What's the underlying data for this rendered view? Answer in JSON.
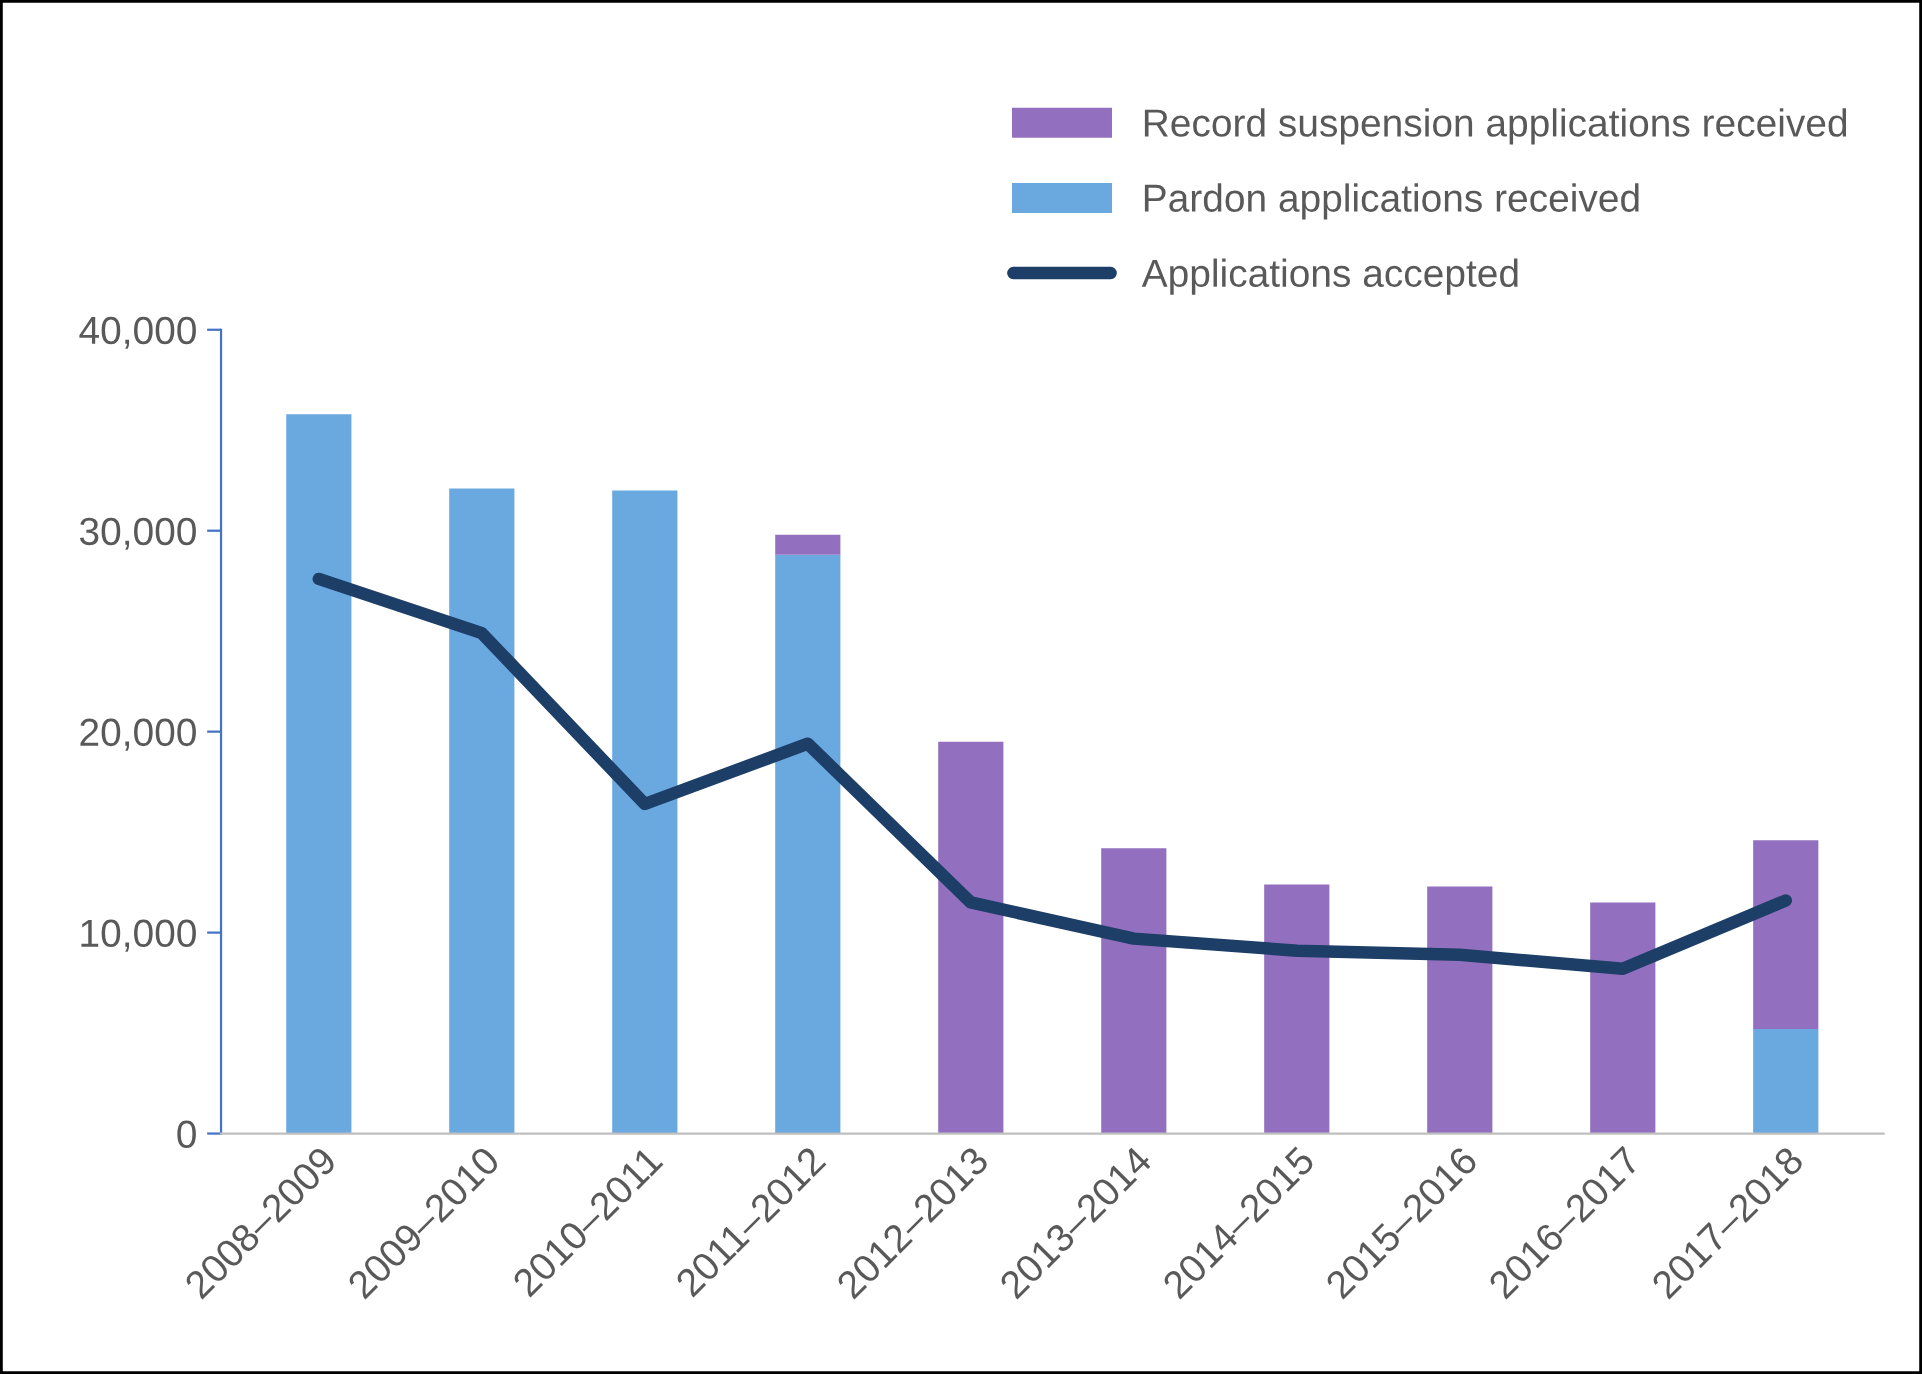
{
  "chart_data": {
    "type": "bar",
    "stacked": true,
    "categories": [
      "2008–2009",
      "2009–2010",
      "2010–2011",
      "2011–2012",
      "2012–2013",
      "2013–2014",
      "2014–2015",
      "2015–2016",
      "2016–2017",
      "2017–2018"
    ],
    "series": [
      {
        "name": "Pardon applications received",
        "color": "#6aa8e0",
        "values": [
          35800,
          32100,
          32000,
          28800,
          null,
          null,
          null,
          null,
          null,
          5200
        ]
      },
      {
        "name": "Record suspension applications received",
        "color": "#9370bf",
        "values": [
          null,
          null,
          null,
          1000,
          19500,
          14200,
          12400,
          12300,
          11500,
          9400
        ]
      },
      {
        "type": "line",
        "name": "Applications accepted",
        "color": "#1c3e67",
        "values": [
          27600,
          24900,
          16400,
          19400,
          11500,
          9700,
          9100,
          8900,
          8200,
          11600
        ]
      }
    ],
    "ylim": [
      0,
      40000
    ],
    "yticks": [
      {
        "value": 0,
        "label": "0"
      },
      {
        "value": 10000,
        "label": "10,000"
      },
      {
        "value": 20000,
        "label": "20,000"
      },
      {
        "value": 30000,
        "label": "30,000"
      },
      {
        "value": 40000,
        "label": "40,000"
      }
    ],
    "grid": false,
    "legend": "top right",
    "marker": "none",
    "line_style": "solid"
  }
}
